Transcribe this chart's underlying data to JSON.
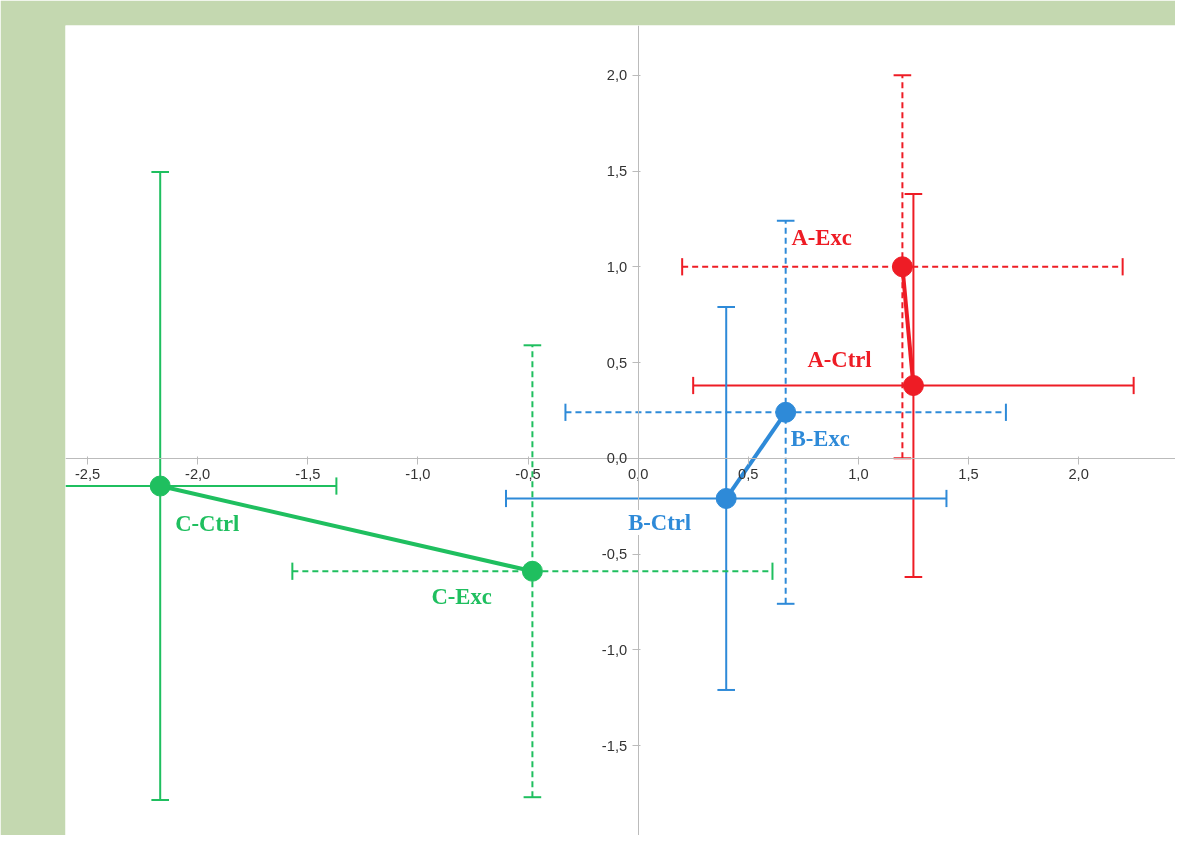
{
  "chart_data": {
    "type": "scatter",
    "xlim": [
      -2.6,
      2.44
    ],
    "ylim": [
      -1.97,
      2.26
    ],
    "xticks": [
      {
        "value": -2.5,
        "label": "-2,5"
      },
      {
        "value": -2.0,
        "label": "-2,0"
      },
      {
        "value": -1.5,
        "label": "-1,5"
      },
      {
        "value": -1.0,
        "label": "-1,0"
      },
      {
        "value": -0.5,
        "label": "-0,5"
      },
      {
        "value": 0.0,
        "label": "0,0"
      },
      {
        "value": 0.5,
        "label": "0,5"
      },
      {
        "value": 1.0,
        "label": "1,0"
      },
      {
        "value": 1.5,
        "label": "1,5"
      },
      {
        "value": 2.0,
        "label": "2,0"
      }
    ],
    "yticks": [
      {
        "value": -1.5,
        "label": "-1,5"
      },
      {
        "value": -1.0,
        "label": "-1,0"
      },
      {
        "value": -0.5,
        "label": "-0,5"
      },
      {
        "value": 0.0,
        "label": "0,0"
      },
      {
        "value": 0.5,
        "label": "0,5"
      },
      {
        "value": 1.0,
        "label": "1,0"
      },
      {
        "value": 1.5,
        "label": "1,5"
      },
      {
        "value": 2.0,
        "label": "2,0"
      }
    ],
    "grid": false,
    "marker": "circle",
    "series": [
      {
        "type": "line",
        "color": "#ee1c25",
        "x": [
          1.25,
          1.2
        ],
        "values": [
          0.38,
          1.0
        ],
        "marker": "none",
        "line_style": "solid"
      },
      {
        "type": "line",
        "color": "#2e8ad8",
        "x": [
          0.4,
          0.67
        ],
        "values": [
          -0.21,
          0.24
        ],
        "marker": "none",
        "line_style": "solid"
      },
      {
        "type": "line",
        "color": "#1fbf5f",
        "x": [
          -2.17,
          -0.48
        ],
        "values": [
          -0.145,
          -0.59
        ],
        "marker": "none",
        "line_style": "solid"
      },
      {
        "color": "#ee1c25",
        "x": [
          1.25
        ],
        "values": [
          0.38
        ],
        "errors": [
          1.0
        ],
        "xerrors": [
          1.0
        ],
        "line_style": "solid",
        "value_labels": [
          "A-Ctrl"
        ]
      },
      {
        "color": "#ee1c25",
        "x": [
          1.2
        ],
        "values": [
          1.0
        ],
        "errors": [
          1.0
        ],
        "xerrors": [
          1.0
        ],
        "line_style": "dashed",
        "value_labels": [
          "A-Exc"
        ]
      },
      {
        "color": "#2e8ad8",
        "x": [
          0.4
        ],
        "values": [
          -0.21
        ],
        "errors": [
          1.0
        ],
        "xerrors": [
          1.0
        ],
        "line_style": "solid",
        "value_labels": [
          "B-Ctrl"
        ]
      },
      {
        "color": "#2e8ad8",
        "x": [
          0.67
        ],
        "values": [
          0.24
        ],
        "errors": [
          1.0
        ],
        "xerrors": [
          1.0
        ],
        "line_style": "dashed",
        "value_labels": [
          "B-Exc"
        ]
      },
      {
        "color": "#1fbf5f",
        "x": [
          -2.17
        ],
        "values": [
          -0.145
        ],
        "errors": [
          1.64
        ],
        "xerrors": [
          [
            -2.6,
            -1.37
          ]
        ],
        "line_style": "solid",
        "value_labels": [
          "C-Ctrl"
        ]
      },
      {
        "color": "#1fbf5f",
        "x": [
          -0.48
        ],
        "values": [
          -0.59
        ],
        "errors": [
          1.18
        ],
        "xerrors": [
          1.09
        ],
        "line_style": "dashed",
        "value_labels": [
          "C-Exc"
        ]
      }
    ]
  }
}
